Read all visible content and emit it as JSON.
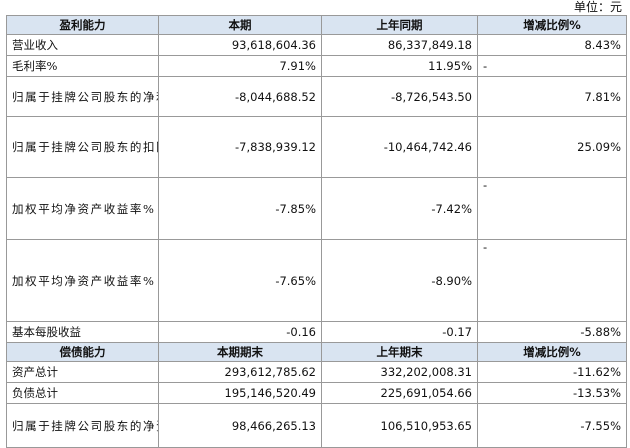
{
  "unit_label": "单位：元",
  "sections": [
    {
      "header": {
        "label": "盈利能力",
        "col1": "本期",
        "col2": "上年同期",
        "col3": "增减比例%"
      },
      "rows": [
        {
          "label": "营业收入",
          "current": "93,618,604.36",
          "previous": "86,337,849.18",
          "change": "8.43%"
        },
        {
          "label": "毛利率%",
          "current": "7.91%",
          "previous": "11.95%",
          "change": "-"
        },
        {
          "label": "归属于挂牌公司股东的净利润",
          "current": "-8,044,688.52",
          "previous": "-8,726,543.50",
          "change": "7.81%"
        },
        {
          "label": "归属于挂牌公司股东的扣除非经常性损益后的净利润",
          "current": "-7,838,939.12",
          "previous": "-10,464,742.46",
          "change": "25.09%"
        },
        {
          "label": "加权平均净资产收益率%（依据归属于挂牌公司股东的净利润计算）",
          "current": "-7.85%",
          "previous": "-7.42%",
          "change": "-"
        },
        {
          "label": "加权平均净资产收益率%（依归属于挂牌公司股东的扣除非经常性损益后的净利润计算）",
          "current": "-7.65%",
          "previous": "-8.90%",
          "change": "-"
        },
        {
          "label": "基本每股收益",
          "current": "-0.16",
          "previous": "-0.17",
          "change": "-5.88%"
        }
      ]
    },
    {
      "header": {
        "label": "偿债能力",
        "col1": "本期期末",
        "col2": "上年期末",
        "col3": "增减比例%"
      },
      "rows": [
        {
          "label": "资产总计",
          "current": "293,612,785.62",
          "previous": "332,202,008.31",
          "change": "-11.62%"
        },
        {
          "label": "负债总计",
          "current": "195,146,520.49",
          "previous": "225,691,054.66",
          "change": "-13.53%"
        },
        {
          "label": "归属于挂牌公司股东的净资产",
          "current": "98,466,265.13",
          "previous": "106,510,953.65",
          "change": "-7.55%"
        }
      ]
    }
  ]
}
